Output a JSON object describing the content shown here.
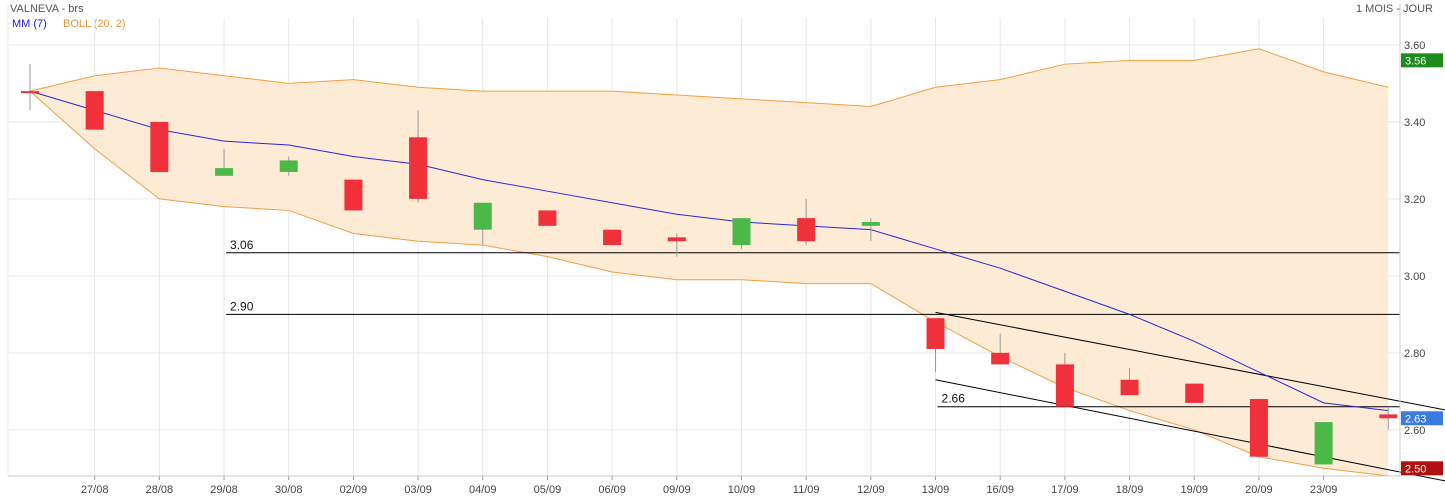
{
  "header": {
    "title": "VALNEVA - brs",
    "period": "1 MOIS - JOUR"
  },
  "legend": {
    "ma_label": "MM (7)",
    "boll_label": "BOLL (20, 2)"
  },
  "colors": {
    "up": "#4cb848",
    "down": "#f0303a",
    "ma": "#2828d8",
    "boll_line": "#f0a040",
    "boll_fill": "#fdebd6",
    "grid": "#e6e6e6",
    "badge_upper": "#1c8c1c",
    "badge_last": "#3a7be0",
    "badge_lower": "#b01010"
  },
  "chart_data": {
    "type": "candlestick",
    "categories": [
      "",
      "27/08",
      "28/08",
      "29/08",
      "30/08",
      "02/09",
      "03/09",
      "04/09",
      "05/09",
      "06/09",
      "09/09",
      "10/09",
      "11/09",
      "12/09",
      "13/09",
      "16/09",
      "17/09",
      "18/09",
      "19/09",
      "20/09",
      "23/09",
      ""
    ],
    "xlabels": [
      "27/08",
      "28/08",
      "29/08",
      "30/08",
      "02/09",
      "03/09",
      "04/09",
      "05/09",
      "06/09",
      "09/09",
      "10/09",
      "11/09",
      "12/09",
      "13/09",
      "16/09",
      "17/09",
      "18/09",
      "19/09",
      "20/09",
      "23/09"
    ],
    "ylim": [
      2.48,
      3.67
    ],
    "yticks": [
      "3.60",
      "3.40",
      "3.20",
      "3.00",
      "2.80",
      "2.60"
    ],
    "ohlc": [
      {
        "o": 3.48,
        "h": 3.55,
        "l": 3.43,
        "c": 3.48
      },
      {
        "o": 3.48,
        "h": 3.48,
        "l": 3.38,
        "c": 3.38
      },
      {
        "o": 3.4,
        "h": 3.4,
        "l": 3.27,
        "c": 3.27
      },
      {
        "o": 3.26,
        "h": 3.33,
        "l": 3.26,
        "c": 3.28
      },
      {
        "o": 3.27,
        "h": 3.31,
        "l": 3.26,
        "c": 3.3
      },
      {
        "o": 3.25,
        "h": 3.25,
        "l": 3.17,
        "c": 3.17
      },
      {
        "o": 3.36,
        "h": 3.43,
        "l": 3.19,
        "c": 3.2
      },
      {
        "o": 3.12,
        "h": 3.19,
        "l": 3.08,
        "c": 3.19
      },
      {
        "o": 3.17,
        "h": 3.17,
        "l": 3.13,
        "c": 3.13
      },
      {
        "o": 3.12,
        "h": 3.12,
        "l": 3.08,
        "c": 3.08
      },
      {
        "o": 3.1,
        "h": 3.11,
        "l": 3.05,
        "c": 3.09
      },
      {
        "o": 3.08,
        "h": 3.15,
        "l": 3.07,
        "c": 3.15
      },
      {
        "o": 3.15,
        "h": 3.2,
        "l": 3.08,
        "c": 3.09
      },
      {
        "o": 3.13,
        "h": 3.15,
        "l": 3.09,
        "c": 3.14
      },
      {
        "o": 2.89,
        "h": 2.89,
        "l": 2.75,
        "c": 2.81
      },
      {
        "o": 2.8,
        "h": 2.85,
        "l": 2.77,
        "c": 2.77
      },
      {
        "o": 2.77,
        "h": 2.8,
        "l": 2.66,
        "c": 2.66
      },
      {
        "o": 2.73,
        "h": 2.76,
        "l": 2.69,
        "c": 2.69
      },
      {
        "o": 2.72,
        "h": 2.72,
        "l": 2.67,
        "c": 2.67
      },
      {
        "o": 2.68,
        "h": 2.68,
        "l": 2.53,
        "c": 2.53
      },
      {
        "o": 2.51,
        "h": 2.61,
        "l": 2.51,
        "c": 2.62
      },
      {
        "o": 2.64,
        "h": 2.66,
        "l": 2.6,
        "c": 2.63
      }
    ],
    "series": [
      {
        "name": "MM (7)",
        "values": [
          3.48,
          3.43,
          3.38,
          3.35,
          3.34,
          3.31,
          3.29,
          3.25,
          3.22,
          3.19,
          3.16,
          3.14,
          3.13,
          3.12,
          3.07,
          3.02,
          2.96,
          2.9,
          2.83,
          2.75,
          2.67,
          2.65
        ]
      },
      {
        "name": "BOLL (20, 2)",
        "upper": [
          3.48,
          3.52,
          3.54,
          3.52,
          3.5,
          3.51,
          3.49,
          3.48,
          3.48,
          3.48,
          3.47,
          3.46,
          3.45,
          3.44,
          3.49,
          3.51,
          3.55,
          3.56,
          3.56,
          3.59,
          3.53,
          3.49
        ],
        "lower": [
          3.48,
          3.33,
          3.2,
          3.18,
          3.17,
          3.11,
          3.09,
          3.08,
          3.05,
          3.01,
          2.99,
          2.99,
          2.98,
          2.98,
          2.88,
          2.79,
          2.71,
          2.65,
          2.6,
          2.53,
          2.5,
          2.48
        ]
      }
    ],
    "levels": [
      {
        "value": 3.06,
        "label": "3.06",
        "from": 3
      },
      {
        "value": 2.9,
        "label": "2.90",
        "from": 3
      },
      {
        "value": 2.66,
        "label": "2.66",
        "from": 14
      }
    ],
    "trendlines": [
      {
        "x1": 14,
        "y1": 2.905,
        "x2": 22,
        "y2": 2.645
      },
      {
        "x1": 14,
        "y1": 2.73,
        "x2": 22,
        "y2": 2.46
      }
    ],
    "badges": [
      {
        "value": 3.56,
        "label": "3.56",
        "kind": "upper"
      },
      {
        "value": 2.63,
        "label": "2.63",
        "kind": "last"
      },
      {
        "value": 2.5,
        "label": "2.50",
        "kind": "lower"
      }
    ],
    "grid": true
  }
}
